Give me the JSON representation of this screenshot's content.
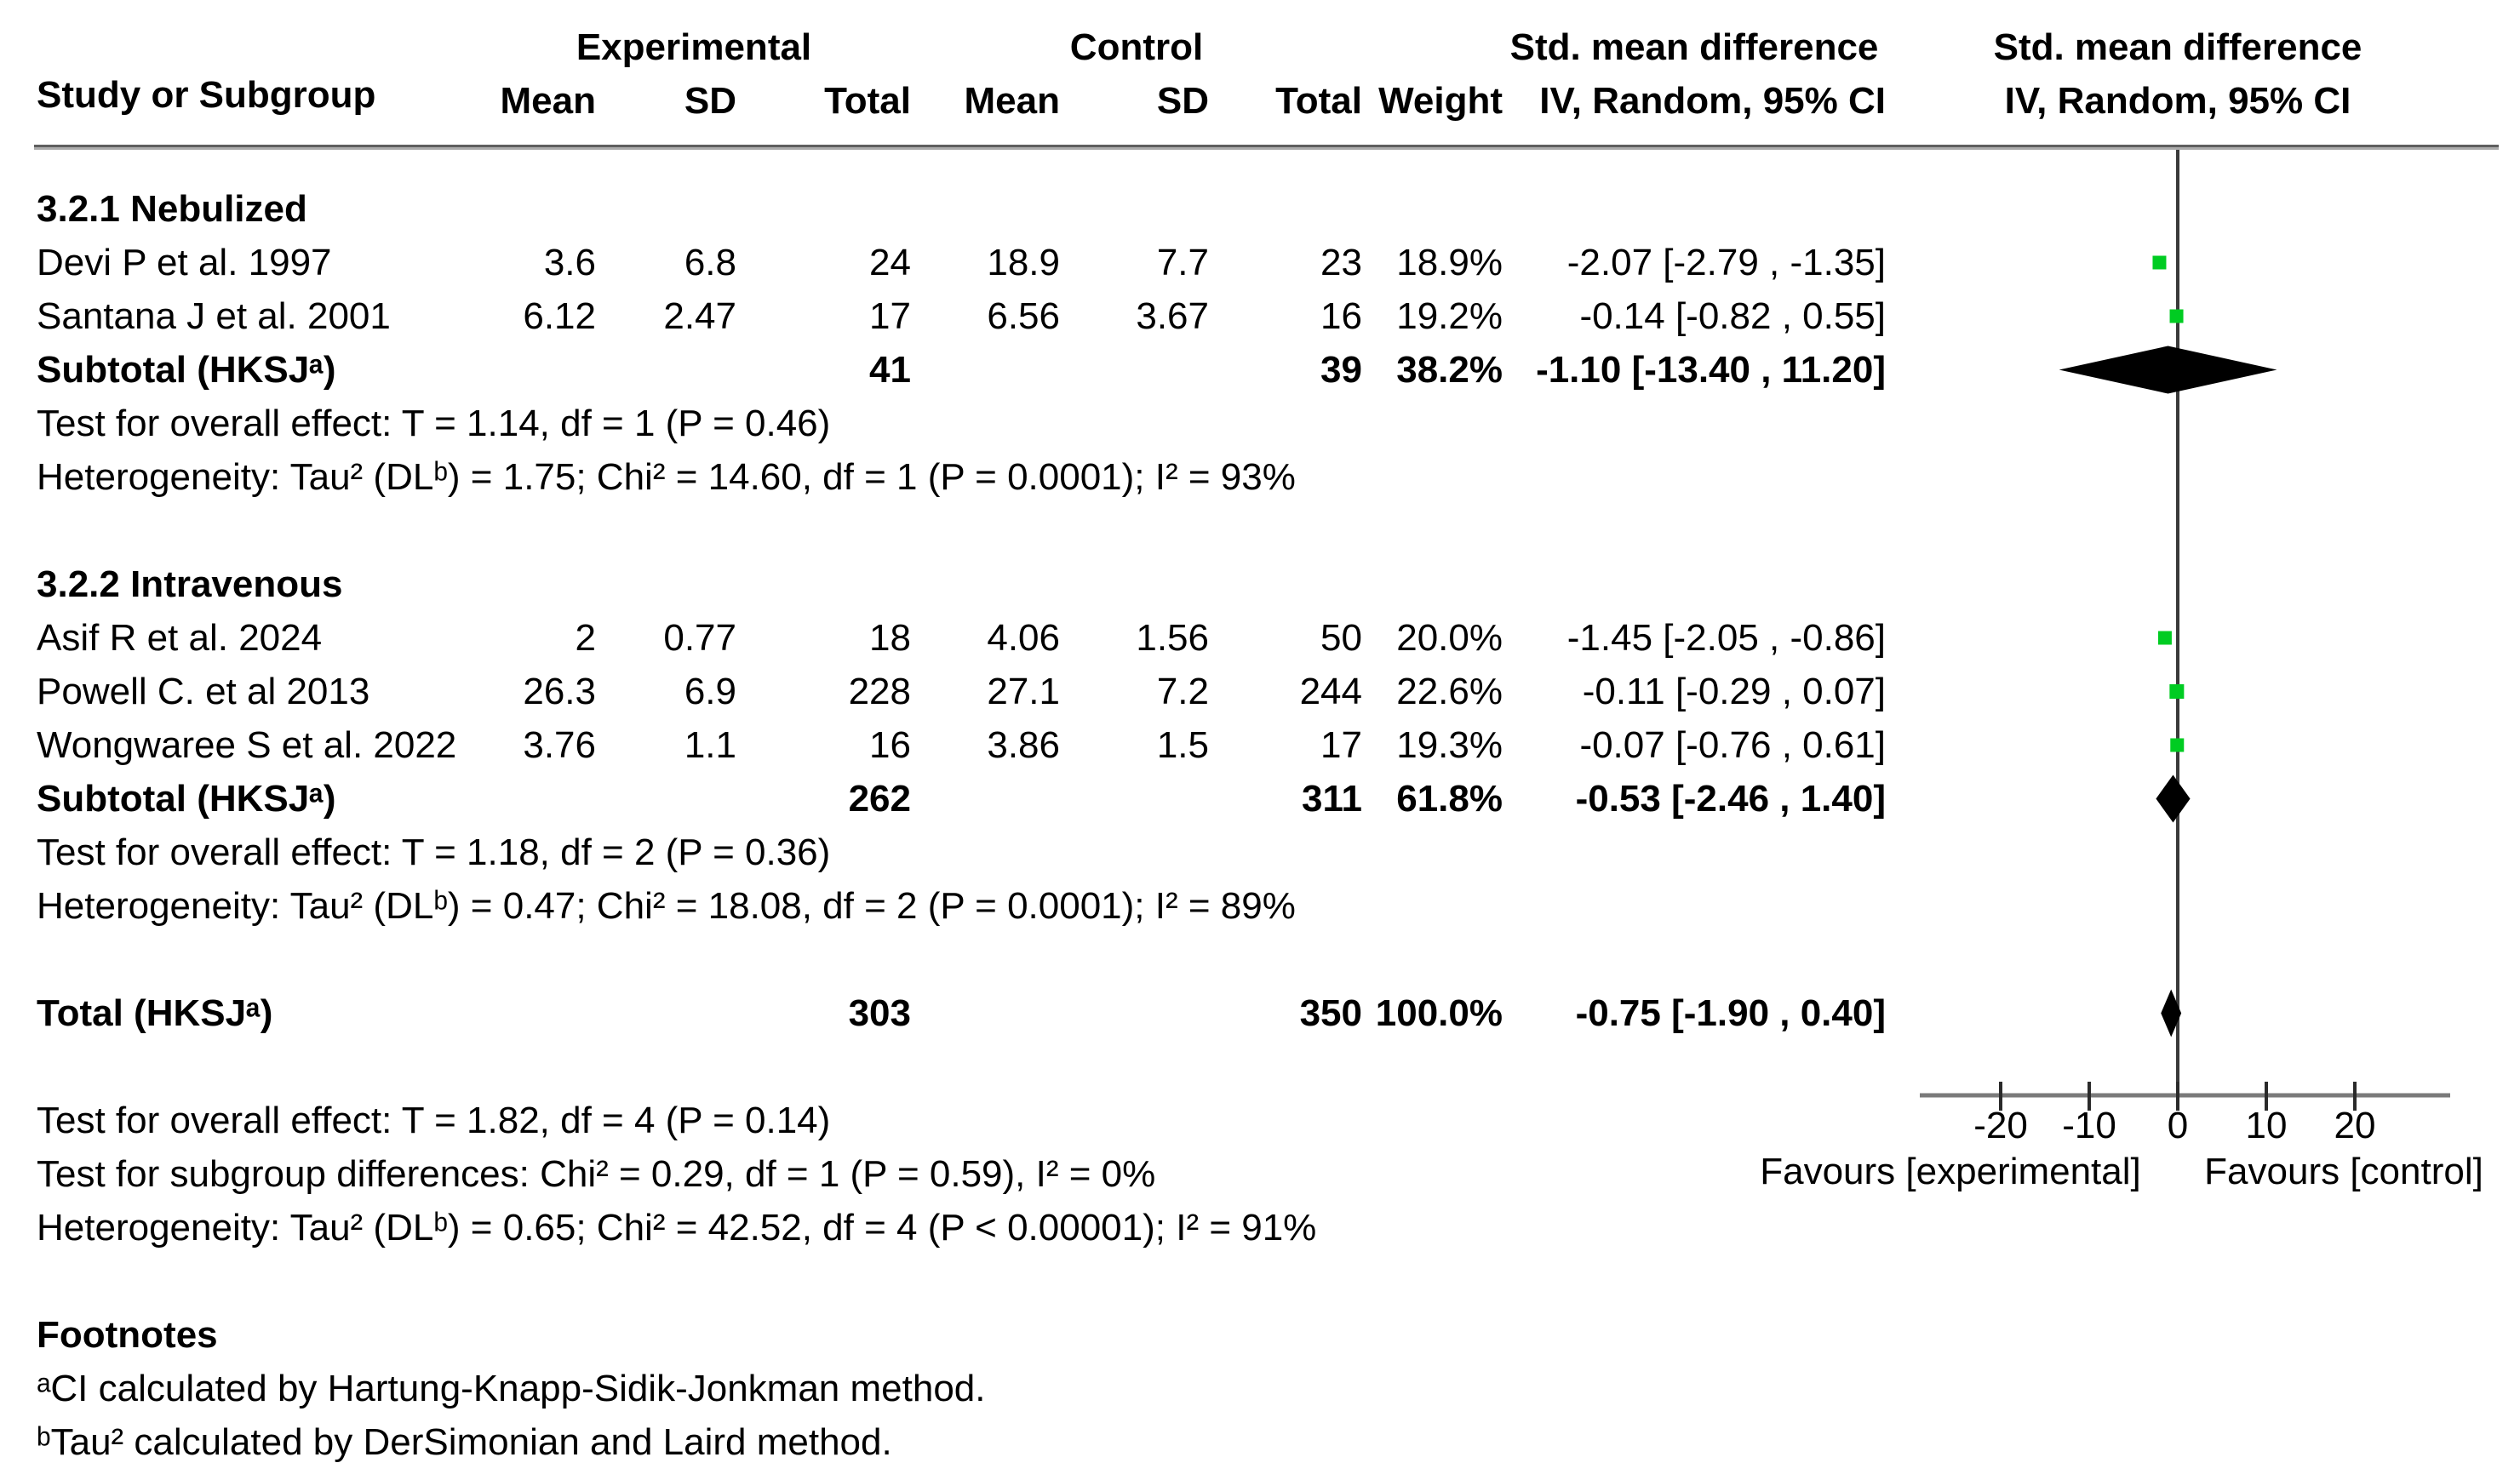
{
  "chart_data": {
    "type": "scatter",
    "subtype": "forest-plot",
    "headers": {
      "study": "Study or Subgroup",
      "experimental": "Experimental",
      "control": "Control",
      "mean": "Mean",
      "sd": "SD",
      "total": "Total",
      "weight": "Weight",
      "smd": "Std. mean difference",
      "method": "IV, Random, 95% CI"
    },
    "axis": {
      "ticks": [
        -20,
        -10,
        0,
        10,
        20
      ],
      "tick_labels": [
        "-20",
        "-10",
        "0",
        "10",
        "20"
      ],
      "xlim": [
        -29,
        31
      ],
      "favours_left": "Favours [experimental]",
      "favours_right": "Favours [control]"
    },
    "colors": {
      "marker_green": "#00CC22",
      "diamond_black": "#000000",
      "axis_gray": "#7a7a7a",
      "zero_line_gray": "#3a3a3a"
    },
    "rows": [
      {
        "kind": "group",
        "label": "3.2.1 Nebulized"
      },
      {
        "kind": "study",
        "study": "Devi P et al. 1997",
        "exp_mean": "3.6",
        "exp_sd": "6.8",
        "exp_total": "24",
        "ctrl_mean": "18.9",
        "ctrl_sd": "7.7",
        "ctrl_total": "23",
        "weight": "18.9%",
        "ci_text": "-2.07 [-2.79 , -1.35]",
        "est": -2.07,
        "lo": -2.79,
        "hi": -1.35
      },
      {
        "kind": "study",
        "study": "Santana J et al. 2001",
        "exp_mean": "6.12",
        "exp_sd": "2.47",
        "exp_total": "17",
        "ctrl_mean": "6.56",
        "ctrl_sd": "3.67",
        "ctrl_total": "16",
        "weight": "19.2%",
        "ci_text": "-0.14 [-0.82 , 0.55]",
        "est": -0.14,
        "lo": -0.82,
        "hi": 0.55
      },
      {
        "kind": "subtotal",
        "label": "Subtotal (HKSJᵃ)",
        "exp_mean": "",
        "exp_sd": "",
        "exp_total": "41",
        "ctrl_mean": "",
        "ctrl_sd": "",
        "ctrl_total": "39",
        "weight": "38.2%",
        "ci_text": "-1.10 [-13.40 , 11.20]",
        "est": -1.1,
        "lo": -13.4,
        "hi": 11.2
      },
      {
        "kind": "text",
        "text": "Test for overall effect: T = 1.14, df = 1 (P = 0.46)"
      },
      {
        "kind": "text",
        "text": "Heterogeneity: Tau² (DLᵇ) = 1.75; Chi² = 14.60, df = 1 (P = 0.0001); I² = 93%"
      },
      {
        "kind": "spacer"
      },
      {
        "kind": "group",
        "label": "3.2.2 Intravenous"
      },
      {
        "kind": "study",
        "study": "Asif R et al. 2024",
        "exp_mean": "2",
        "exp_sd": "0.77",
        "exp_total": "18",
        "ctrl_mean": "4.06",
        "ctrl_sd": "1.56",
        "ctrl_total": "50",
        "weight": "20.0%",
        "ci_text": "-1.45 [-2.05 , -0.86]",
        "est": -1.45,
        "lo": -2.05,
        "hi": -0.86
      },
      {
        "kind": "study",
        "study": "Powell C. et al 2013",
        "exp_mean": "26.3",
        "exp_sd": "6.9",
        "exp_total": "228",
        "ctrl_mean": "27.1",
        "ctrl_sd": "7.2",
        "ctrl_total": "244",
        "weight": "22.6%",
        "ci_text": "-0.11 [-0.29 , 0.07]",
        "est": -0.11,
        "lo": -0.29,
        "hi": 0.07
      },
      {
        "kind": "study",
        "study": "Wongwaree S et al. 2022",
        "exp_mean": "3.76",
        "exp_sd": "1.1",
        "exp_total": "16",
        "ctrl_mean": "3.86",
        "ctrl_sd": "1.5",
        "ctrl_total": "17",
        "weight": "19.3%",
        "ci_text": "-0.07 [-0.76 , 0.61]",
        "est": -0.07,
        "lo": -0.76,
        "hi": 0.61
      },
      {
        "kind": "subtotal",
        "label": "Subtotal (HKSJᵃ)",
        "exp_mean": "",
        "exp_sd": "",
        "exp_total": "262",
        "ctrl_mean": "",
        "ctrl_sd": "",
        "ctrl_total": "311",
        "weight": "61.8%",
        "ci_text": "-0.53 [-2.46 , 1.40]",
        "est": -0.53,
        "lo": -2.46,
        "hi": 1.4
      },
      {
        "kind": "text",
        "text": "Test for overall effect: T = 1.18, df = 2 (P = 0.36)"
      },
      {
        "kind": "text",
        "text": "Heterogeneity: Tau² (DLᵇ) = 0.47; Chi² = 18.08, df = 2 (P = 0.0001); I² = 89%"
      },
      {
        "kind": "spacer"
      },
      {
        "kind": "total",
        "label": "Total (HKSJᵃ)",
        "exp_mean": "",
        "exp_sd": "",
        "exp_total": "303",
        "ctrl_mean": "",
        "ctrl_sd": "",
        "ctrl_total": "350",
        "weight": "100.0%",
        "ci_text": "-0.75 [-1.90 , 0.40]",
        "est": -0.75,
        "lo": -1.9,
        "hi": 0.4
      },
      {
        "kind": "spacer"
      },
      {
        "kind": "text",
        "text": "Test for overall effect: T = 1.82, df = 4 (P = 0.14)"
      },
      {
        "kind": "text",
        "text": "Test for subgroup differences: Chi² = 0.29, df = 1 (P = 0.59), I² = 0%"
      },
      {
        "kind": "text",
        "text": "Heterogeneity: Tau² (DLᵇ) = 0.65; Chi² = 42.52, df = 4 (P < 0.00001); I² = 91%"
      },
      {
        "kind": "spacer"
      },
      {
        "kind": "heading",
        "label": "Footnotes"
      },
      {
        "kind": "footnote",
        "text": "ᵃCI calculated by Hartung-Knapp-Sidik-Jonkman method."
      },
      {
        "kind": "footnote",
        "text": "ᵇTau² calculated by DerSimonian and Laird method."
      }
    ]
  }
}
